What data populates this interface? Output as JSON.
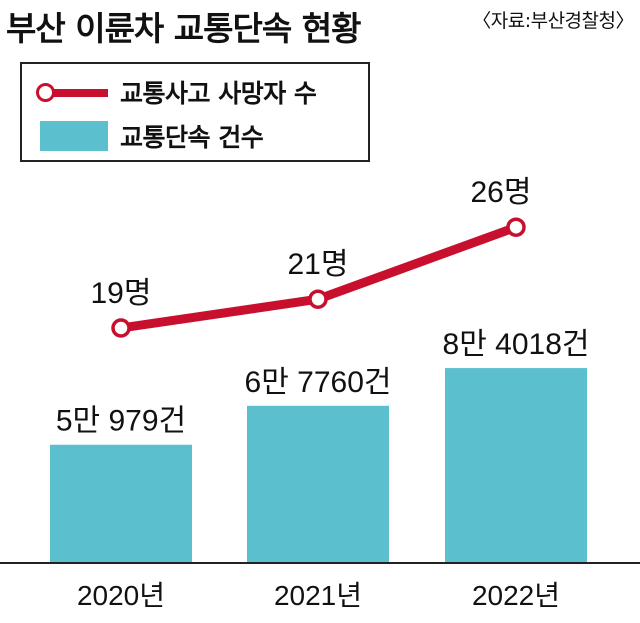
{
  "title": "부산 이륜차 교통단속 현황",
  "source": "〈자료:부산경찰청〉",
  "legend": {
    "line_label": "교통사고 사망자 수",
    "bar_label": "교통단속 건수"
  },
  "colors": {
    "bar": "#5bbfcd",
    "line": "#c8102e",
    "axis": "#222222"
  },
  "chart_data": {
    "type": "bar",
    "categories": [
      "2020년",
      "2021년",
      "2022년"
    ],
    "series": [
      {
        "name": "교통단속 건수",
        "type": "bar",
        "values": [
          50979,
          67760,
          84018
        ],
        "labels": [
          "5만 979건",
          "6만 7760건",
          "8만 4018건"
        ]
      },
      {
        "name": "교통사고 사망자 수",
        "type": "line",
        "values": [
          19,
          21,
          26
        ],
        "labels": [
          "19명",
          "21명",
          "26명"
        ]
      }
    ],
    "title": "부산 이륜차 교통단속 현황",
    "xlabel": "",
    "ylabel": "",
    "legend_position": "top-left",
    "grid": false
  }
}
